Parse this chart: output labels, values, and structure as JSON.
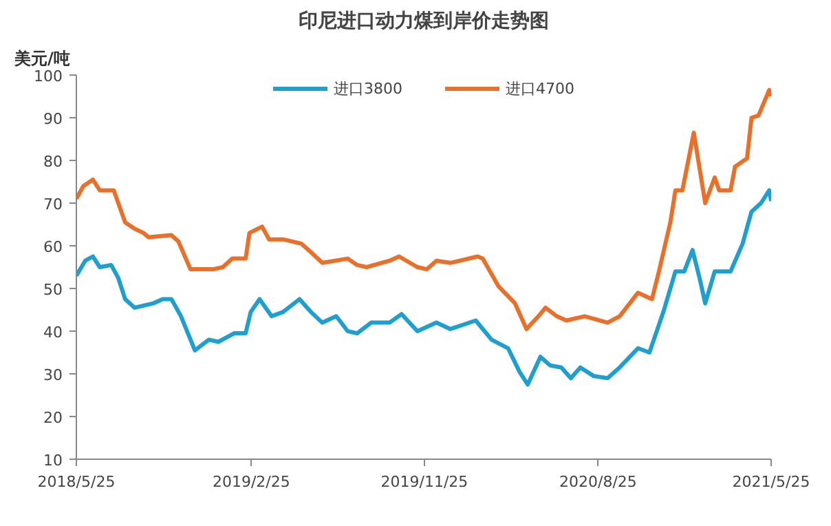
{
  "chart_data": {
    "type": "line",
    "title": "印尼进口动力煤到岸价走势图",
    "ylabel": "美元/吨",
    "legend": "top",
    "line_style": "solid",
    "xlim": [
      "2018-05-25",
      "2021-05-25"
    ],
    "xticks": [
      {
        "value": "2018-05-25",
        "label": "2018/5/25"
      },
      {
        "value": "2019-02-25",
        "label": "2019/2/25"
      },
      {
        "value": "2019-11-25",
        "label": "2019/11/25"
      },
      {
        "value": "2020-08-25",
        "label": "2020/8/25"
      },
      {
        "value": "2021-05-25",
        "label": "2021/5/25"
      }
    ],
    "ylim": [
      10,
      100
    ],
    "yticks": [
      10,
      20,
      30,
      40,
      50,
      60,
      70,
      80,
      90,
      100
    ],
    "series": [
      {
        "name": "进口3800",
        "color": "#1f9fcf",
        "x": [
          "2018-05-25",
          "2018-06-08",
          "2018-06-20",
          "2018-07-01",
          "2018-07-19",
          "2018-07-30",
          "2018-08-10",
          "2018-08-25",
          "2018-09-23",
          "2018-10-08",
          "2018-10-22",
          "2018-11-06",
          "2018-11-28",
          "2018-12-20",
          "2019-01-04",
          "2019-01-29",
          "2019-02-16",
          "2019-02-24",
          "2019-03-10",
          "2019-03-29",
          "2019-04-16",
          "2019-05-12",
          "2019-05-30",
          "2019-06-17",
          "2019-07-09",
          "2019-07-27",
          "2019-08-11",
          "2019-09-02",
          "2019-10-01",
          "2019-10-20",
          "2019-11-14",
          "2019-12-14",
          "2020-01-05",
          "2020-02-14",
          "2020-03-10",
          "2020-04-05",
          "2020-04-23",
          "2020-05-06",
          "2020-05-26",
          "2020-06-10",
          "2020-06-28",
          "2020-07-13",
          "2020-07-28",
          "2020-08-18",
          "2020-09-09",
          "2020-09-28",
          "2020-10-27",
          "2020-11-14",
          "2020-12-06",
          "2020-12-25",
          "2021-01-08",
          "2021-01-21",
          "2021-02-01",
          "2021-02-10",
          "2021-02-25",
          "2021-03-22",
          "2021-04-10",
          "2021-04-24",
          "2021-05-09",
          "2021-05-22",
          "2021-05-25"
        ],
        "values": [
          53,
          56.5,
          57.5,
          55,
          55.5,
          52.5,
          47.5,
          45.5,
          46.5,
          47.5,
          47.5,
          43.5,
          35.5,
          38,
          37.5,
          39.5,
          39.5,
          44.5,
          47.5,
          43.5,
          44.5,
          47.5,
          44.5,
          42,
          43.5,
          40,
          39.5,
          42,
          42,
          44,
          40,
          42,
          40.5,
          42.5,
          38,
          36,
          30.5,
          27.5,
          34,
          32,
          31.5,
          29,
          31.5,
          29.5,
          29,
          31.5,
          36,
          35,
          44.5,
          54,
          54,
          59,
          52.5,
          46.5,
          54,
          54,
          60.5,
          68,
          70,
          73,
          70.5
        ]
      },
      {
        "name": "进口4700",
        "color": "#e8702a",
        "x": [
          "2018-05-25",
          "2018-06-05",
          "2018-06-20",
          "2018-07-01",
          "2018-07-23",
          "2018-08-10",
          "2018-08-25",
          "2018-09-08",
          "2018-09-16",
          "2018-10-22",
          "2018-11-02",
          "2018-11-21",
          "2018-12-27",
          "2019-01-11",
          "2019-01-26",
          "2019-02-16",
          "2019-02-22",
          "2019-03-14",
          "2019-03-25",
          "2019-04-16",
          "2019-05-15",
          "2019-05-30",
          "2019-06-17",
          "2019-07-27",
          "2019-08-11",
          "2019-08-26",
          "2019-10-01",
          "2019-10-16",
          "2019-11-14",
          "2019-11-29",
          "2019-12-14",
          "2020-01-05",
          "2020-02-17",
          "2020-02-25",
          "2020-03-21",
          "2020-04-16",
          "2020-05-04",
          "2020-05-23",
          "2020-06-03",
          "2020-06-21",
          "2020-07-06",
          "2020-08-04",
          "2020-09-09",
          "2020-09-28",
          "2020-10-27",
          "2020-11-18",
          "2020-11-29",
          "2020-12-17",
          "2020-12-25",
          "2021-01-05",
          "2021-01-23",
          "2021-02-10",
          "2021-02-25",
          "2021-03-04",
          "2021-03-22",
          "2021-03-29",
          "2021-04-17",
          "2021-04-24",
          "2021-05-05",
          "2021-05-22",
          "2021-05-25"
        ],
        "values": [
          71,
          74,
          75.5,
          73,
          73,
          65.5,
          64,
          63,
          62,
          62.5,
          61,
          54.5,
          54.5,
          55,
          57,
          57,
          63,
          64.5,
          61.5,
          61.5,
          60.5,
          58.5,
          56,
          57,
          55.5,
          55,
          56.5,
          57.5,
          55,
          54.5,
          56.5,
          56,
          57.5,
          57,
          50.5,
          46.5,
          40.5,
          43.5,
          45.5,
          43.5,
          42.5,
          43.5,
          42,
          43.5,
          49,
          47.5,
          54,
          65.5,
          73,
          73,
          86.5,
          70,
          76,
          73,
          73,
          78.5,
          80.5,
          90,
          90.5,
          96.5,
          95
        ]
      }
    ]
  }
}
